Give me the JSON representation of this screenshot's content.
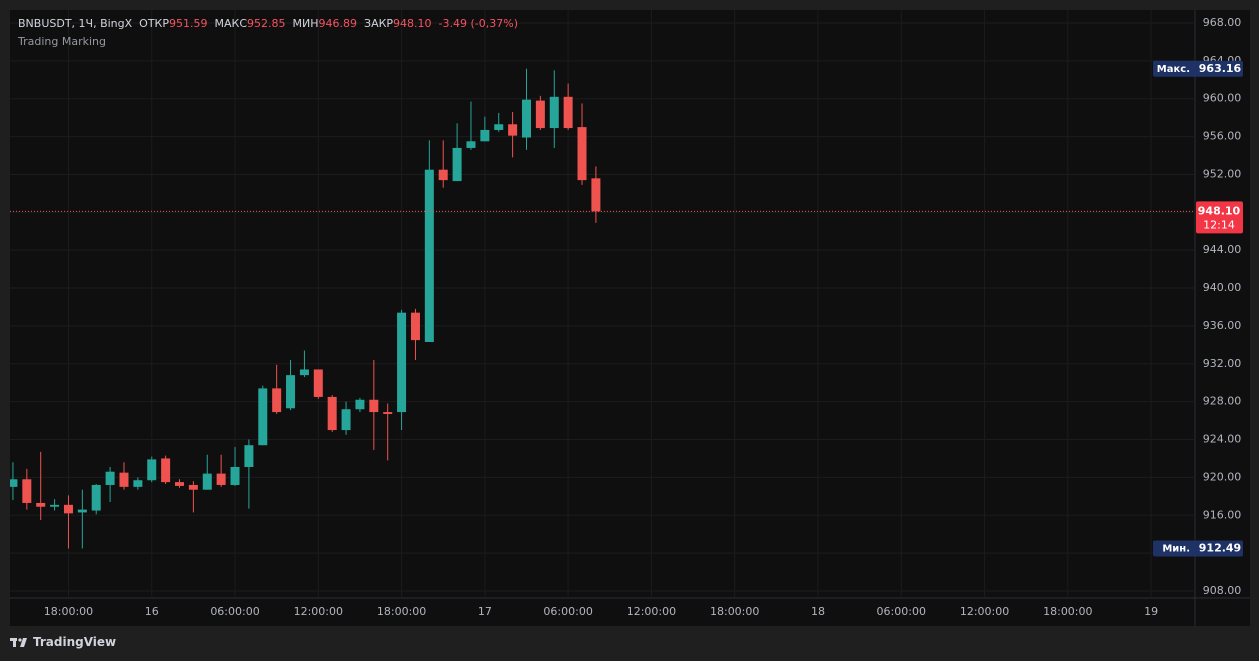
{
  "chart_data": {
    "type": "candlestick",
    "header": {
      "symbol": "BNBUSDT, 1Ч, BingX",
      "open_label": "ОТКР",
      "open": "951.59",
      "high_label": "МАКС",
      "high": "952.85",
      "low_label": "МИН",
      "low": "946.89",
      "close_label": "ЗАКР",
      "close": "948.10",
      "change": "-3.49 (-0,37%)"
    },
    "indicator": "Trading Marking",
    "categories": [
      null,
      null,
      null,
      null,
      "18:00:00",
      null,
      null,
      null,
      null,
      null,
      "16",
      null,
      null,
      null,
      null,
      null,
      "06:00:00",
      null,
      null,
      null,
      null,
      null,
      "12:00:00",
      null,
      null,
      null,
      null,
      null,
      "18:00:00",
      null,
      null,
      null,
      null,
      null,
      "17",
      null,
      null,
      null,
      null,
      null,
      "06:00:00",
      null,
      null,
      null,
      null,
      null,
      "12:00:00",
      null,
      null,
      null,
      null,
      null,
      "18:00:00",
      null,
      null,
      null,
      null,
      null,
      "18",
      null,
      null,
      null,
      null,
      null,
      "06:00:00",
      null,
      null,
      null,
      null,
      null,
      "12:00:00",
      null,
      null,
      null,
      null,
      null,
      "18:00:00",
      null,
      null,
      null,
      null,
      null,
      "19",
      null,
      null
    ],
    "open": [
      919.0,
      919.8,
      917.3,
      916.9,
      917.1,
      916.3,
      916.5,
      919.2,
      920.5,
      919.0,
      919.7,
      922.0,
      919.5,
      919.2,
      918.7,
      920.4,
      919.2,
      921.1,
      923.4,
      929.4,
      927.3,
      930.8,
      931.4,
      928.5,
      925.0,
      927.2,
      928.2,
      926.9,
      926.9,
      937.4,
      934.3,
      952.5,
      951.3,
      954.8,
      955.5,
      956.7,
      957.3,
      955.9,
      959.8,
      956.9,
      960.2,
      957.0,
      951.59,
      null,
      null,
      null,
      null,
      null,
      null,
      null,
      null,
      null,
      null,
      null,
      null,
      null,
      null,
      null,
      null,
      null,
      null,
      null,
      null,
      null,
      null,
      null,
      null,
      null,
      null,
      null,
      null,
      null,
      null,
      null,
      null,
      null,
      null,
      null,
      null,
      null,
      null,
      null,
      null,
      null,
      null
    ],
    "high": [
      921.6,
      920.9,
      922.7,
      917.7,
      918.1,
      918.7,
      919.3,
      921.1,
      921.6,
      920.0,
      922.2,
      922.3,
      919.8,
      919.6,
      922.4,
      922.4,
      923.2,
      924.0,
      929.7,
      931.9,
      932.4,
      933.4,
      931.4,
      928.7,
      928.0,
      928.4,
      932.4,
      927.8,
      937.7,
      937.8,
      955.6,
      955.6,
      957.4,
      959.7,
      958.1,
      958.5,
      958.6,
      963.16,
      960.3,
      963.0,
      961.6,
      959.5,
      952.85,
      null,
      null,
      null,
      null,
      null,
      null,
      null,
      null,
      null,
      null,
      null,
      null,
      null,
      null,
      null,
      null,
      null,
      null,
      null,
      null,
      null,
      null,
      null,
      null,
      null,
      null,
      null,
      null,
      null,
      null,
      null,
      null,
      null,
      null,
      null,
      null,
      null,
      null,
      null,
      null,
      null,
      null
    ],
    "low": [
      917.6,
      916.6,
      915.5,
      916.5,
      912.49,
      912.5,
      916.1,
      917.4,
      918.7,
      918.7,
      919.5,
      919.3,
      918.9,
      916.3,
      918.7,
      919.0,
      919.1,
      916.7,
      923.4,
      926.7,
      927.1,
      930.6,
      928.3,
      924.8,
      924.5,
      926.9,
      922.9,
      921.8,
      925.0,
      932.4,
      934.3,
      950.6,
      951.3,
      954.6,
      955.5,
      956.5,
      953.8,
      954.6,
      956.7,
      954.8,
      956.7,
      950.9,
      946.89,
      null,
      null,
      null,
      null,
      null,
      null,
      null,
      null,
      null,
      null,
      null,
      null,
      null,
      null,
      null,
      null,
      null,
      null,
      null,
      null,
      null,
      null,
      null,
      null,
      null,
      null,
      null,
      null,
      null,
      null,
      null,
      null,
      null,
      null,
      null,
      null,
      null,
      null,
      null,
      null,
      null,
      null
    ],
    "close": [
      919.8,
      917.3,
      916.9,
      917.1,
      916.2,
      916.6,
      919.2,
      920.6,
      919.0,
      919.7,
      921.9,
      919.5,
      919.1,
      918.7,
      920.4,
      919.2,
      921.1,
      923.4,
      929.4,
      926.9,
      930.8,
      931.4,
      928.5,
      925.0,
      927.2,
      928.2,
      926.9,
      926.7,
      937.4,
      934.5,
      952.5,
      951.4,
      954.8,
      955.5,
      956.7,
      957.3,
      956.1,
      959.9,
      956.9,
      960.2,
      956.9,
      951.4,
      948.1,
      null,
      null,
      null,
      null,
      null,
      null,
      null,
      null,
      null,
      null,
      null,
      null,
      null,
      null,
      null,
      null,
      null,
      null,
      null,
      null,
      null,
      null,
      null,
      null,
      null,
      null,
      null,
      null,
      null,
      null,
      null,
      null,
      null,
      null,
      null,
      null,
      null,
      null,
      null,
      null,
      null,
      null
    ],
    "up_color": "#26a69a",
    "down_color": "#ef5350",
    "ylim": [
      907.26,
      969.37
    ],
    "yticks": [
      {
        "value": 908,
        "label": "908.00"
      },
      {
        "value": 912,
        "label": "912.00"
      },
      {
        "value": 916,
        "label": "916.00"
      },
      {
        "value": 920,
        "label": "920.00"
      },
      {
        "value": 924,
        "label": "924.00"
      },
      {
        "value": 928,
        "label": "928.00"
      },
      {
        "value": 932,
        "label": "932.00"
      },
      {
        "value": 936,
        "label": "936.00"
      },
      {
        "value": 940,
        "label": "940.00"
      },
      {
        "value": 944,
        "label": "944.00"
      },
      {
        "value": 948,
        "label": "948.00"
      },
      {
        "value": 952,
        "label": "952.00"
      },
      {
        "value": 956,
        "label": "956.00"
      },
      {
        "value": 960,
        "label": "960.00"
      },
      {
        "value": 964,
        "label": "964.00"
      },
      {
        "value": 968,
        "label": "968.00"
      }
    ],
    "grid": true,
    "max_marker": {
      "name": "Макс.",
      "value": 963.16,
      "label": "963.16"
    },
    "min_marker": {
      "name": "Мин.",
      "value": 912.49,
      "label": "912.49"
    },
    "last_price": {
      "value": 948.1,
      "label": "948.10",
      "countdown": "12:14"
    }
  },
  "footer": {
    "brand": "TradingView"
  }
}
